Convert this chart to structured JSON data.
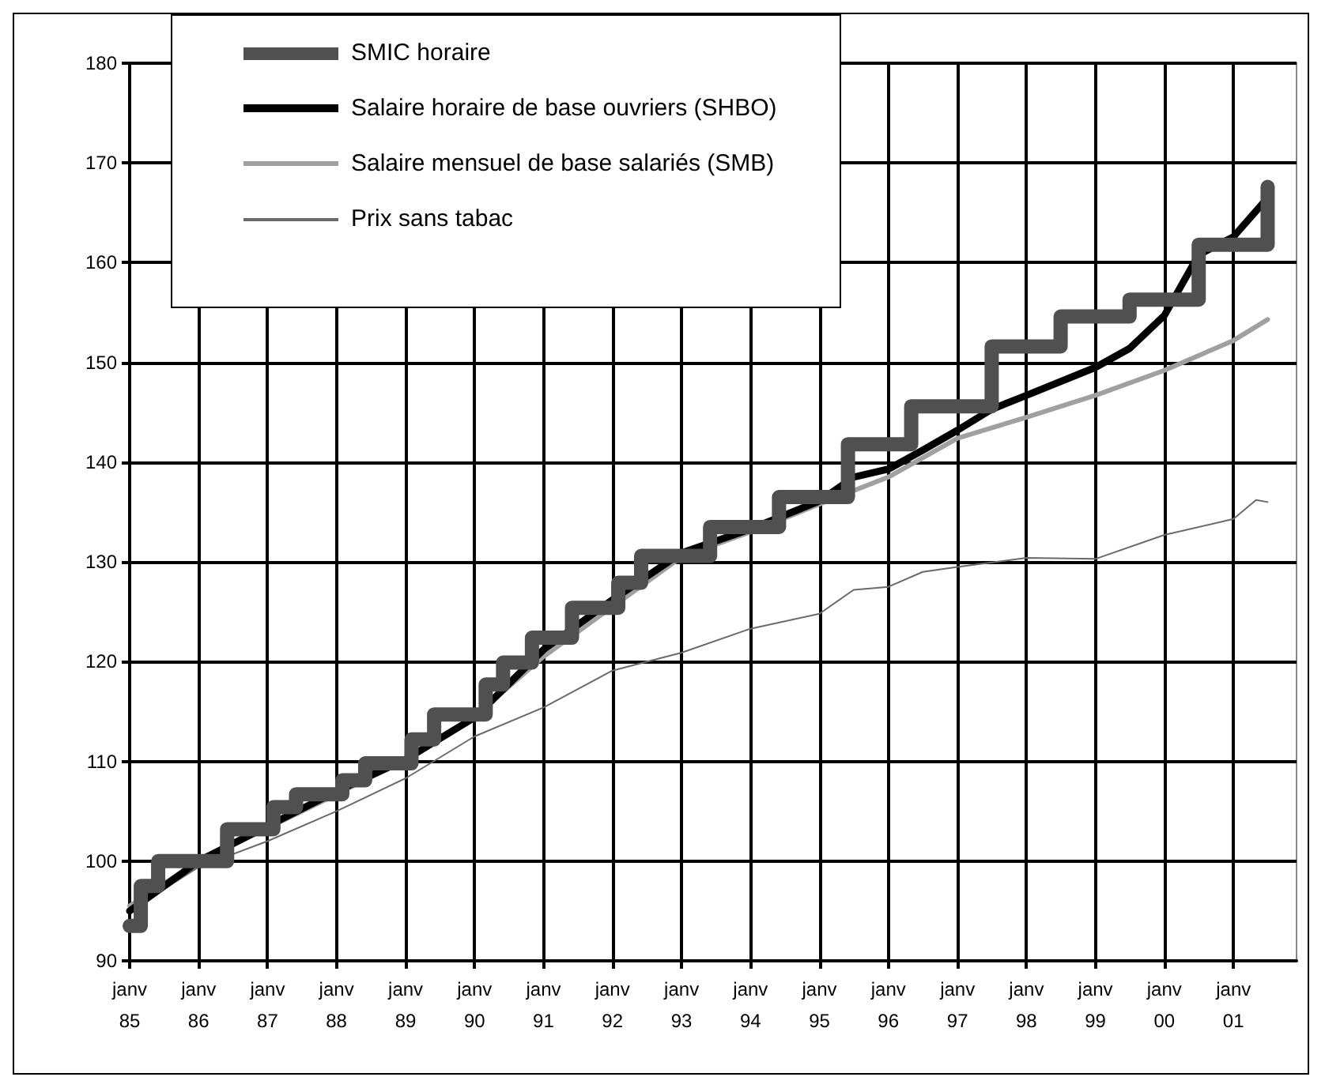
{
  "chart_data": {
    "type": "line",
    "series": [
      {
        "name": "SMIC horaire",
        "type": "step",
        "color": "#505050",
        "x": [
          "1985-01",
          "1985-03",
          "1985-06",
          "1986-06",
          "1987-02",
          "1987-06",
          "1988-02",
          "1988-06",
          "1989-02",
          "1989-06",
          "1990-03",
          "1990-06",
          "1990-11",
          "1991-06",
          "1992-02",
          "1992-06",
          "1993-06",
          "1994-06",
          "1995-06",
          "1996-05",
          "1997-07",
          "1998-07",
          "1999-07",
          "2000-07",
          "2001-07"
        ],
        "values": [
          93.5,
          97.5,
          100,
          103.2,
          105.4,
          106.7,
          108.1,
          109.8,
          112.2,
          114.7,
          117.7,
          119.9,
          122.4,
          125.4,
          127.9,
          130.6,
          133.5,
          136.5,
          141.8,
          145.6,
          151.6,
          154.6,
          156.3,
          161.8,
          167.6
        ]
      },
      {
        "name": "Salaire horaire de base ouvriers (SHBO)",
        "color": "#000000",
        "x": [
          "1985-01",
          "1986-01",
          "1987-01",
          "1988-01",
          "1989-01",
          "1990-01",
          "1991-01",
          "1992-01",
          "1993-01",
          "1994-01",
          "1995-01",
          "1995-07",
          "1996-01",
          "1996-07",
          "1997-01",
          "1997-07",
          "1998-01",
          "1999-01",
          "1999-07",
          "2000-01",
          "2000-07",
          "2001-01",
          "2001-07"
        ],
        "values": [
          95,
          100,
          103.5,
          107,
          110.2,
          114.4,
          121.2,
          126.2,
          130.9,
          133.3,
          136.1,
          138.5,
          139.3,
          141.2,
          143.2,
          145.3,
          146.7,
          149.5,
          151.4,
          154.7,
          160.8,
          162.6,
          166.5
        ]
      },
      {
        "name": "Salaire mensuel de base salariés (SMB)",
        "color": "#a0a0a0",
        "x": [
          "1985-01",
          "1986-01",
          "1987-01",
          "1988-01",
          "1989-01",
          "1990-01",
          "1991-01",
          "1992-01",
          "1993-01",
          "1994-01",
          "1995-01",
          "1996-01",
          "1997-01",
          "1998-01",
          "1999-01",
          "2000-01",
          "2001-01",
          "2001-07"
        ],
        "values": [
          95.5,
          100,
          103.3,
          106.7,
          110.2,
          114.5,
          120.5,
          125.5,
          130.5,
          133,
          135.8,
          138.5,
          142.4,
          144.5,
          146.7,
          149.2,
          152.2,
          154.3
        ]
      },
      {
        "name": "Prix sans tabac",
        "color": "#6a6a6a",
        "x": [
          "1985-01",
          "1986-01",
          "1987-01",
          "1988-01",
          "1989-01",
          "1990-01",
          "1991-01",
          "1992-01",
          "1993-01",
          "1994-01",
          "1995-01",
          "1995-07",
          "1996-01",
          "1996-07",
          "1997-01",
          "1998-01",
          "1999-01",
          "2000-01",
          "2001-01",
          "2001-05",
          "2001-07"
        ],
        "values": [
          95,
          99.4,
          102,
          105,
          108.3,
          112.5,
          115.4,
          119.1,
          120.9,
          123.3,
          124.8,
          127.2,
          127.5,
          129,
          129.5,
          130.4,
          130.3,
          132.7,
          134.3,
          136.2,
          136
        ]
      }
    ],
    "xlim": [
      "1985-01",
      "2001-12"
    ],
    "xticks": [
      {
        "value": "1985-01",
        "label": "janv\n85"
      },
      {
        "value": "1986-01",
        "label": "janv\n86"
      },
      {
        "value": "1987-01",
        "label": "janv\n87"
      },
      {
        "value": "1988-01",
        "label": "janv\n88"
      },
      {
        "value": "1989-01",
        "label": "janv\n89"
      },
      {
        "value": "1990-01",
        "label": "janv\n90"
      },
      {
        "value": "1991-01",
        "label": "janv\n91"
      },
      {
        "value": "1992-01",
        "label": "janv\n92"
      },
      {
        "value": "1993-01",
        "label": "janv\n93"
      },
      {
        "value": "1994-01",
        "label": "janv\n94"
      },
      {
        "value": "1995-01",
        "label": "janv\n95"
      },
      {
        "value": "1996-01",
        "label": "janv\n96"
      },
      {
        "value": "1997-01",
        "label": "janv\n97"
      },
      {
        "value": "1998-01",
        "label": "janv\n98"
      },
      {
        "value": "1999-01",
        "label": "janv\n99"
      },
      {
        "value": "2000-01",
        "label": "janv\n00"
      },
      {
        "value": "2001-01",
        "label": "janv\n01"
      }
    ],
    "ylim": [
      90,
      180
    ],
    "yticks": [
      90,
      100,
      110,
      120,
      130,
      140,
      150,
      160,
      170,
      180
    ],
    "grid": true,
    "legend": "top left",
    "marker": "none",
    "line_style": "solid"
  }
}
